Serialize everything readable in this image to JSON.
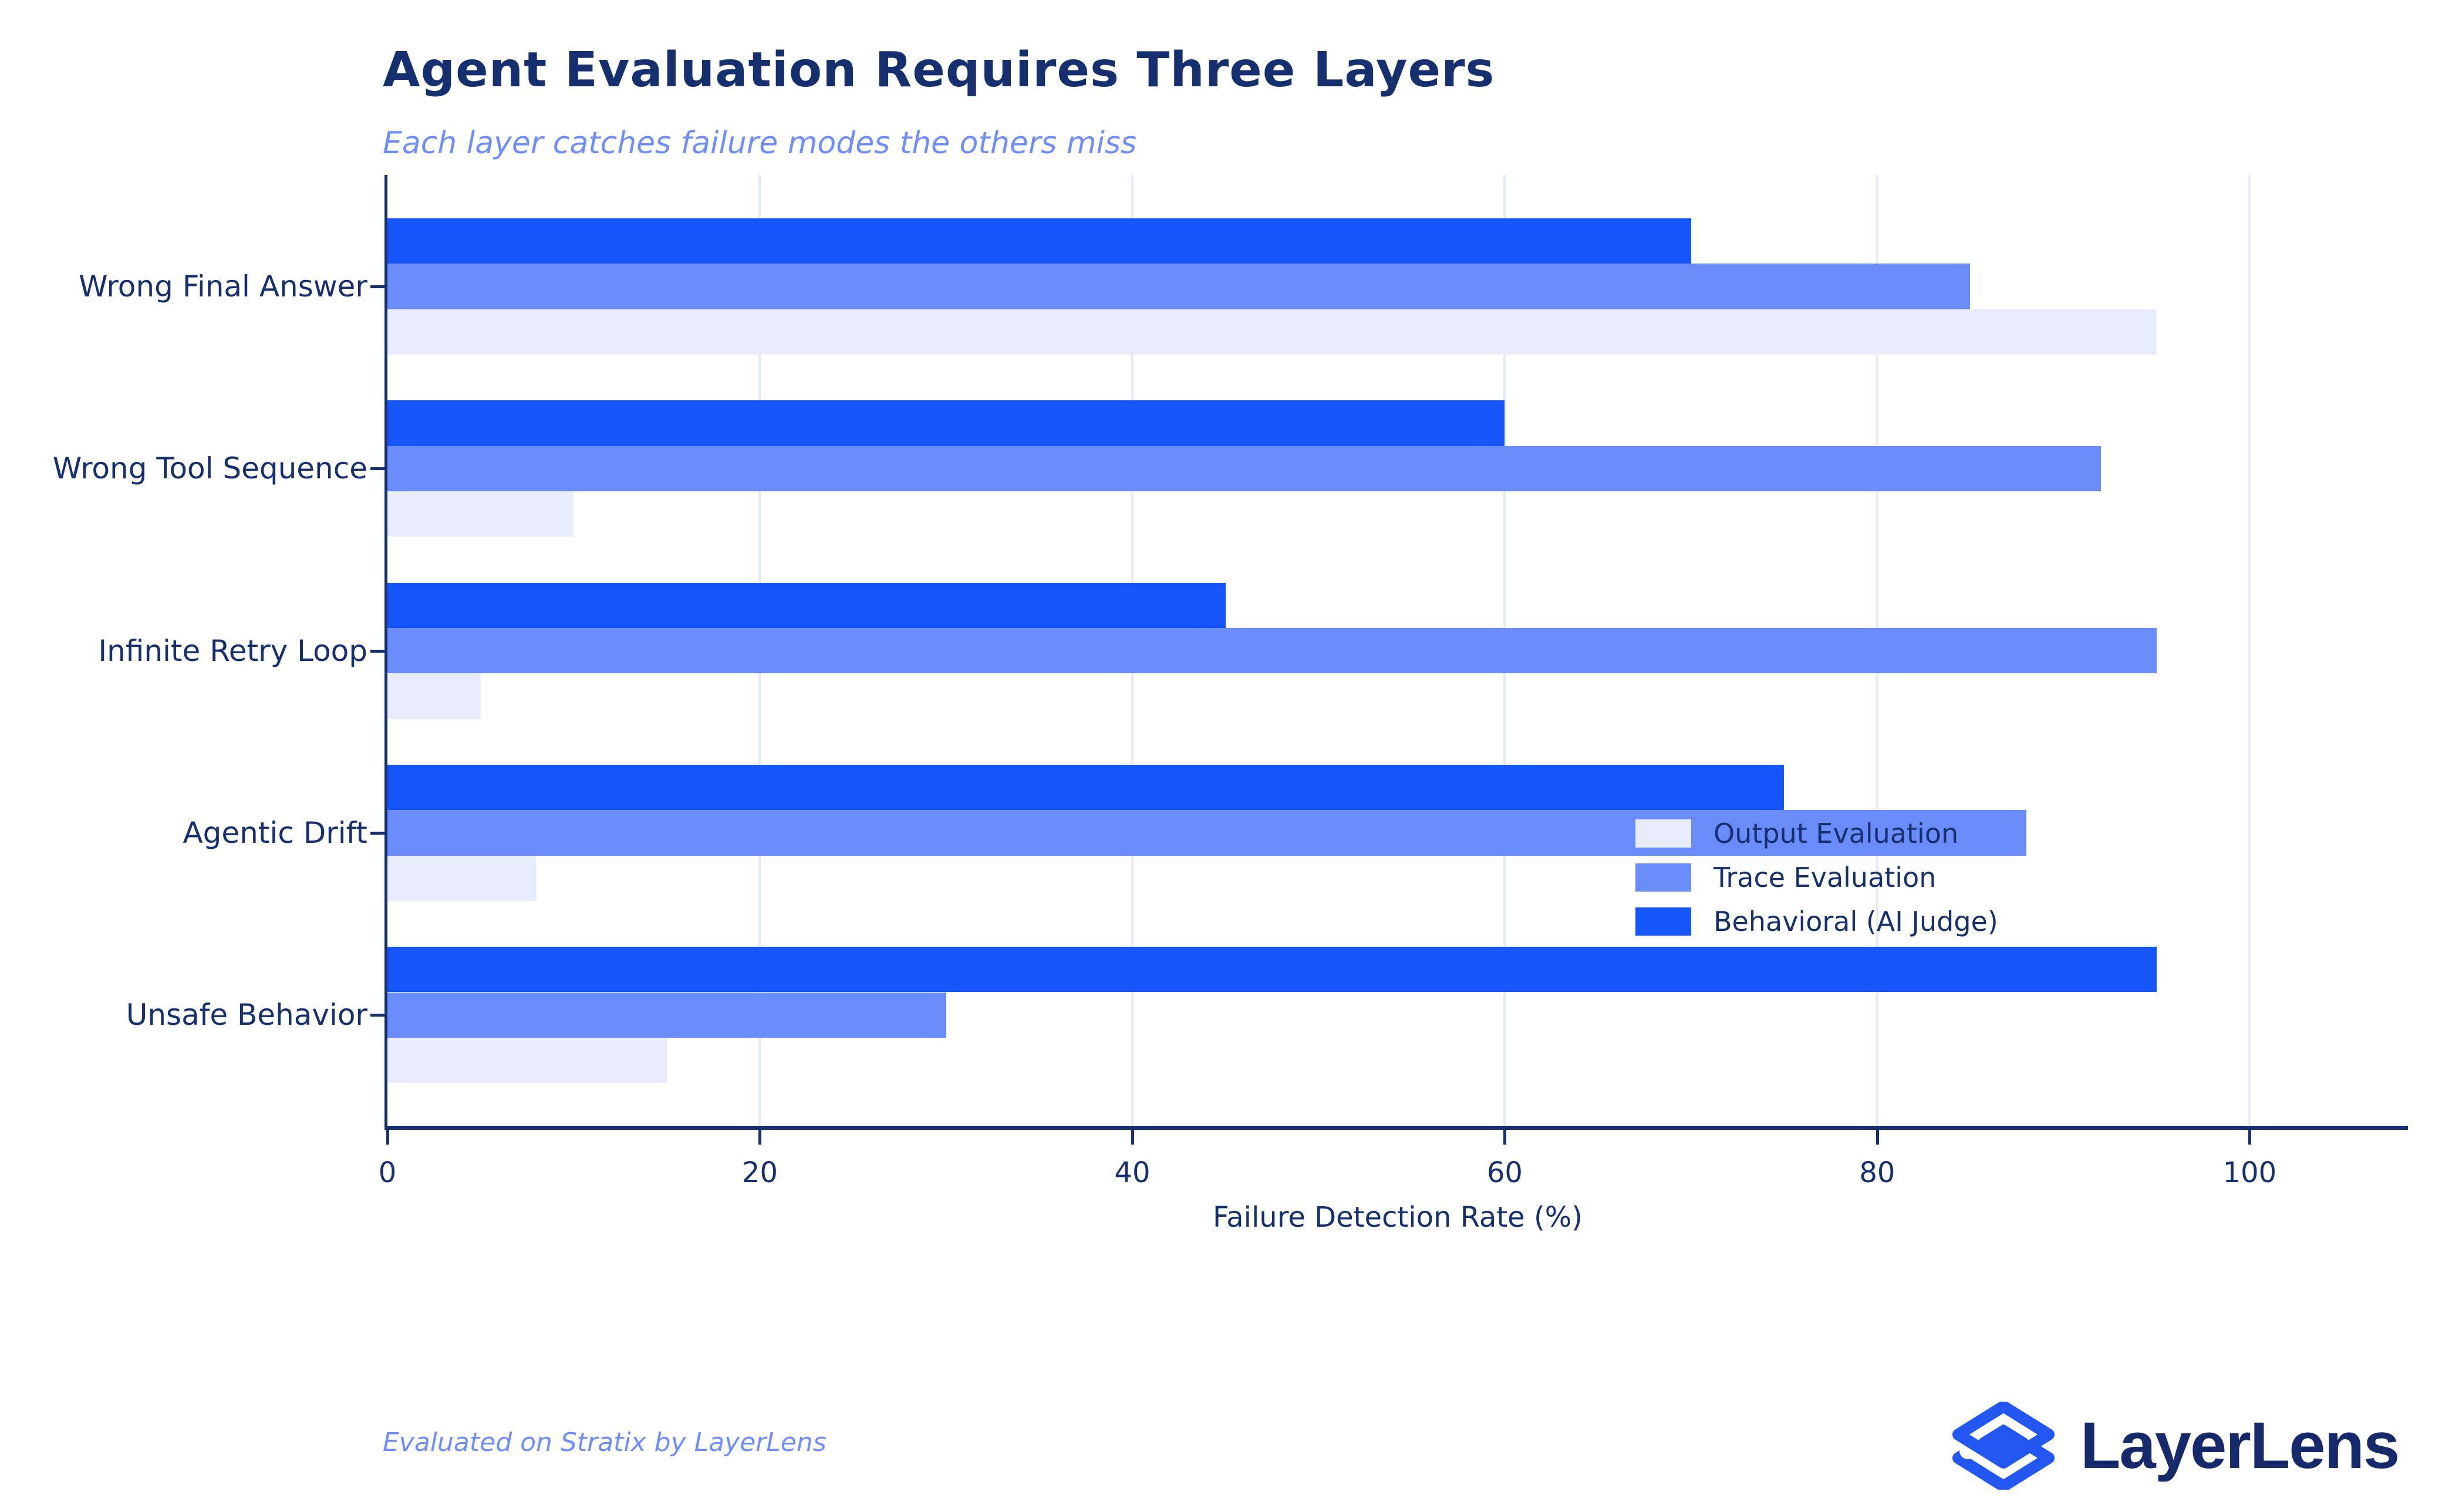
{
  "header": {
    "title": "Agent Evaluation Requires Three Layers",
    "subtitle": "Each layer catches failure modes the others miss"
  },
  "chart_data": {
    "type": "bar",
    "orientation": "horizontal",
    "title": "Agent Evaluation Requires Three Layers",
    "subtitle": "Each layer catches failure modes the others miss",
    "categories": [
      "Wrong Final Answer",
      "Wrong Tool Sequence",
      "Infinite Retry Loop",
      "Agentic Drift",
      "Unsafe Behavior"
    ],
    "series": [
      {
        "name": "Output Evaluation",
        "color": "#e7edfa",
        "values": [
          95,
          10,
          5,
          8,
          15
        ]
      },
      {
        "name": "Trace Evaluation",
        "color": "#698cfa",
        "values": [
          85,
          92,
          95,
          88,
          30
        ]
      },
      {
        "name": "Behavioral (AI Judge)",
        "color": "#1556fa",
        "values": [
          70,
          60,
          45,
          75,
          95
        ]
      }
    ],
    "xlabel": "Failure Detection Rate (%)",
    "xlim": [
      0,
      108.5
    ],
    "xticks": [
      0,
      20,
      40,
      60,
      80,
      100
    ],
    "grid": "vertical-light",
    "legend_position": "lower right"
  },
  "footer": {
    "note": "Evaluated on Stratix by LayerLens",
    "brand": "LayerLens"
  },
  "colors": {
    "navy_text": "#162f6e",
    "periwinkle": "#6f8efb",
    "grid": "#e6eaf8",
    "behavioral_blue": "#1556fa",
    "trace_blue": "#698cfa",
    "output_blue": "#e7edfa",
    "logo_blue": "#2257f2",
    "background": "#ffffff"
  }
}
